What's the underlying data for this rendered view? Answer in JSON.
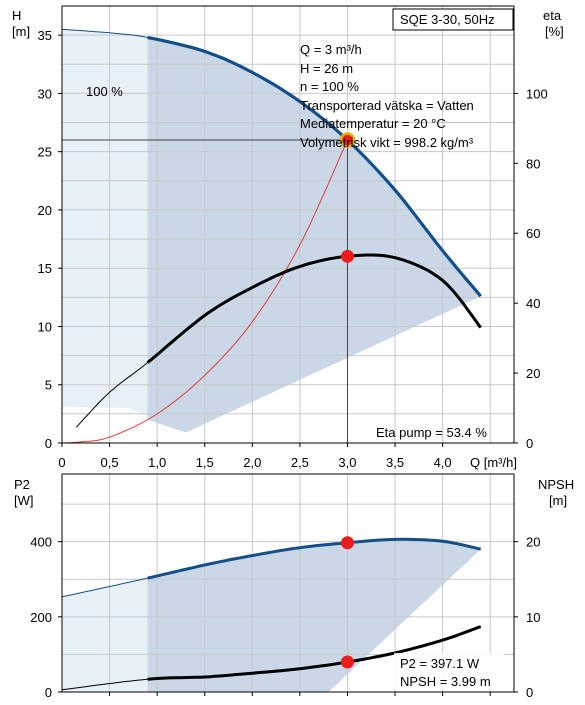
{
  "colors": {
    "grid": "#c8c8c8",
    "frame": "#000000",
    "band_light": "#e8f0f8",
    "band_dark": "#c9d7e6",
    "head_curve": "#134f8a",
    "eta_curve": "#000000",
    "system_curve": "#e23a3a",
    "op_marker": "#ee1c1c",
    "op_marker_ring": "#e2b400"
  },
  "header": {
    "model_label": "SQE 3-30, 50Hz"
  },
  "info_lines": [
    "Q = 3 m³/h",
    "H = 26 m",
    "n = 100 %",
    "Transporterad vätska = Vatten",
    "Mediatemperatur = 20 °C",
    "Volymetrisk vikt = 998.2 kg/m³"
  ],
  "speed_label": "100 %",
  "eta_pump_label": "Eta pump = 53.4 %",
  "p2_label": "P2 = 397.1 W",
  "npsh_label": "NPSH = 3.99 m",
  "chart_data": [
    {
      "type": "line",
      "id": "head-efficiency",
      "title": "",
      "xlabel": "Q [m³/h]",
      "ylabel_left": "H\n[m]",
      "ylabel_right": "eta\n[%]",
      "xlim": [
        0,
        4.75
      ],
      "ylim_left": [
        0,
        37.5
      ],
      "ylim_right": [
        0,
        125
      ],
      "x_ticks": [
        "0",
        "0,5",
        "1,0",
        "1,5",
        "2,0",
        "2,5",
        "3,0",
        "3,5",
        "4,0"
      ],
      "y_left_ticks": [
        "0",
        "5",
        "10",
        "15",
        "20",
        "25",
        "30",
        "35"
      ],
      "y_right_ticks": [
        "0",
        "20",
        "40",
        "60",
        "80",
        "100"
      ],
      "grid": true,
      "series": [
        {
          "role": "head",
          "axis": "left",
          "x": [
            0,
            0.5,
            0.9,
            1.5,
            2.0,
            2.5,
            3.0,
            3.5,
            4.0,
            4.4
          ],
          "y": [
            35.5,
            35.2,
            34.8,
            33.6,
            31.8,
            29.3,
            26.0,
            21.7,
            16.5,
            12.6
          ],
          "valid_from": 0.9
        },
        {
          "role": "efficiency",
          "axis": "right",
          "x": [
            0.15,
            0.5,
            0.9,
            1.5,
            2.0,
            2.5,
            3.0,
            3.5,
            4.0,
            4.4
          ],
          "y": [
            4.5,
            14.5,
            23,
            36.5,
            44.5,
            50.5,
            53.4,
            53.0,
            46.5,
            33.0
          ],
          "valid_from": 0.9
        },
        {
          "role": "system",
          "axis": "left",
          "x": [
            0.2,
            0.5,
            1.0,
            1.5,
            2.0,
            2.5,
            3.0
          ],
          "y": [
            0.1,
            0.5,
            2.5,
            5.8,
            10.4,
            17.0,
            26.0
          ]
        }
      ],
      "operating_point": {
        "x": 3.0,
        "head": 26.0,
        "eta": 53.4
      }
    },
    {
      "type": "line",
      "id": "power-npsh",
      "title": "",
      "xlabel": "",
      "ylabel_left": "P2\n[W]",
      "ylabel_right": "NPSH\n[m]",
      "xlim": [
        0,
        4.75
      ],
      "ylim_left": [
        0,
        580
      ],
      "ylim_right": [
        0,
        29
      ],
      "y_left_ticks": [
        "0",
        "200",
        "400"
      ],
      "y_right_ticks": [
        "0",
        "10",
        "20"
      ],
      "grid": true,
      "series": [
        {
          "role": "p2",
          "axis": "left",
          "x": [
            0,
            0.9,
            1.5,
            2.0,
            2.5,
            3.0,
            3.5,
            4.0,
            4.4
          ],
          "y": [
            253,
            303,
            338,
            363,
            384,
            397.1,
            406,
            401,
            380
          ],
          "valid_from": 0.9
        },
        {
          "role": "npsh",
          "axis": "right",
          "x": [
            0,
            0.9,
            1.5,
            2.0,
            2.5,
            3.0,
            3.5,
            4.0,
            4.4
          ],
          "y": [
            0.3,
            1.7,
            2.0,
            2.5,
            3.1,
            3.99,
            5.2,
            6.9,
            8.7
          ],
          "valid_from": 0.9
        }
      ],
      "operating_point": {
        "x": 3.0,
        "p2": 397.1,
        "npsh": 3.99
      }
    }
  ]
}
